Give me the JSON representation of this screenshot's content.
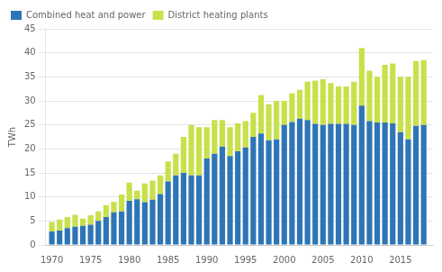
{
  "chart_data": {
    "type": "bar",
    "stacked": true,
    "ylabel": "TWh",
    "x": [
      1970,
      1971,
      1972,
      1973,
      1974,
      1975,
      1976,
      1977,
      1978,
      1979,
      1980,
      1981,
      1982,
      1983,
      1984,
      1985,
      1986,
      1987,
      1988,
      1989,
      1990,
      1991,
      1992,
      1993,
      1994,
      1995,
      1996,
      1997,
      1998,
      1999,
      2000,
      2001,
      2002,
      2003,
      2004,
      2005,
      2006,
      2007,
      2008,
      2009,
      2010,
      2011,
      2012,
      2013,
      2014,
      2015,
      2016,
      2017,
      2018
    ],
    "series": [
      {
        "name": "Combined heat and power",
        "color": "#2e75b6",
        "values": [
          2.8,
          3.0,
          3.5,
          3.8,
          4.0,
          4.2,
          5.0,
          5.8,
          6.8,
          7.0,
          9.2,
          9.5,
          8.9,
          9.4,
          10.6,
          13.2,
          14.5,
          15.0,
          14.5,
          14.5,
          18.0,
          19.0,
          20.5,
          18.5,
          19.5,
          20.3,
          22.5,
          23.2,
          21.8,
          22.0,
          25.0,
          25.6,
          26.3,
          26.0,
          25.2,
          25.0,
          25.2,
          25.2,
          25.2,
          25.0,
          29.0,
          25.8,
          25.5,
          25.5,
          25.3,
          23.5,
          22.0,
          24.8,
          25.0
        ]
      },
      {
        "name": "District heating plants",
        "color": "#c8e04a",
        "values": [
          2.0,
          2.3,
          2.3,
          2.5,
          1.5,
          2.0,
          2.0,
          2.5,
          2.2,
          3.5,
          3.8,
          1.8,
          3.9,
          4.0,
          3.9,
          4.2,
          4.5,
          7.5,
          10.5,
          10.0,
          6.5,
          7.0,
          5.5,
          6.0,
          5.8,
          5.5,
          5.0,
          8.0,
          7.5,
          8.0,
          5.0,
          6.0,
          6.0,
          8.0,
          9.0,
          9.5,
          8.5,
          7.8,
          7.8,
          9.0,
          12.0,
          10.5,
          9.5,
          12.0,
          12.5,
          11.5,
          13.0,
          13.5,
          13.5
        ]
      }
    ],
    "xlim": [
      1969.2,
      2019.2
    ],
    "xticks": [
      1970,
      1975,
      1980,
      1985,
      1990,
      1995,
      2000,
      2005,
      2010,
      2015
    ],
    "ylim": [
      0,
      45
    ],
    "yticks": [
      0,
      5,
      10,
      15,
      20,
      25,
      30,
      35,
      40,
      45
    ],
    "grid": "y",
    "legend": "upper left"
  }
}
